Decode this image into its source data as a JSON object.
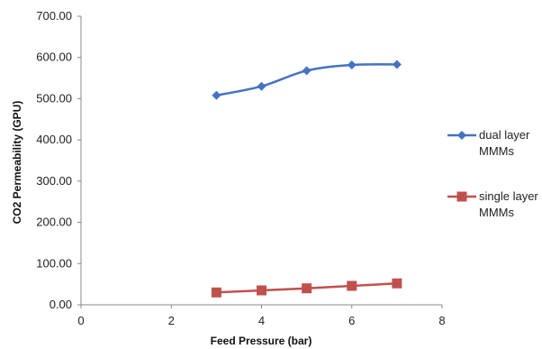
{
  "chart_data": {
    "type": "line",
    "xlabel": "Feed Pressure (bar)",
    "ylabel": "CO2 Permeability (GPU)",
    "xlim": [
      0,
      8
    ],
    "ylim": [
      0,
      700
    ],
    "x_ticks": [
      "0",
      "2",
      "4",
      "6",
      "8"
    ],
    "y_ticks": [
      "0.00",
      "100.00",
      "200.00",
      "300.00",
      "400.00",
      "500.00",
      "600.00",
      "700.00"
    ],
    "grid": false,
    "legend_position": "right",
    "series": [
      {
        "name_lines": [
          "dual layer",
          "MMMs"
        ],
        "color": "#4472C4",
        "marker": "diamond",
        "x": [
          3,
          4,
          5,
          6,
          7
        ],
        "values": [
          508,
          530,
          568,
          582,
          583
        ]
      },
      {
        "name_lines": [
          "single layer",
          "MMMs"
        ],
        "color": "#C0504D",
        "marker": "square",
        "x": [
          3,
          4,
          5,
          6,
          7
        ],
        "values": [
          30,
          35,
          40,
          46,
          52
        ]
      }
    ]
  }
}
